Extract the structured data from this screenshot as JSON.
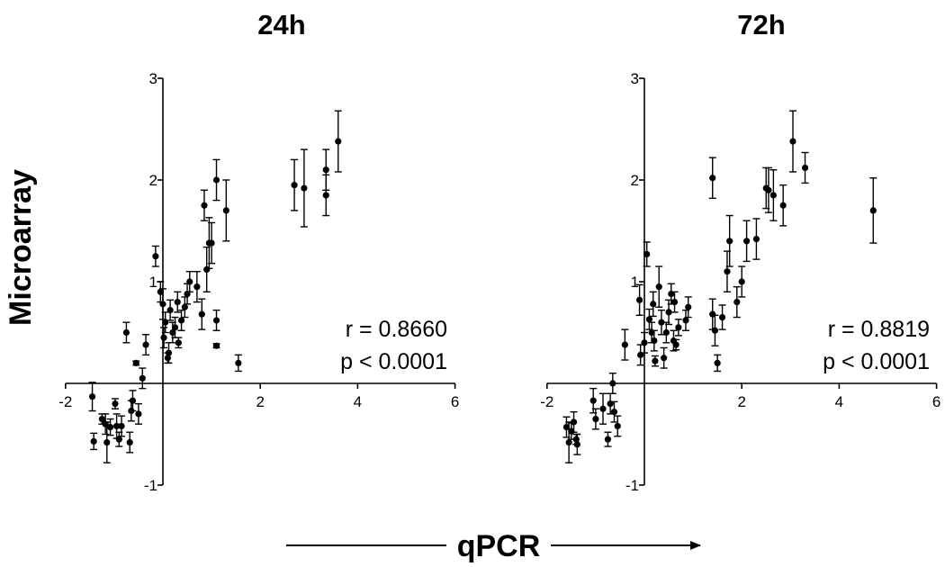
{
  "figure": {
    "ylabel": "Microarray",
    "xlabel": "qPCR"
  },
  "chart_data": [
    {
      "type": "scatter",
      "title": "24h",
      "xlabel": "",
      "ylabel": "",
      "xlim": [
        -2,
        6
      ],
      "ylim": [
        -1,
        3
      ],
      "xticks": [
        -2,
        2,
        4,
        6
      ],
      "yticks": [
        -1,
        1,
        2,
        3
      ],
      "error_bars": true,
      "annotations": [
        "r = 0.8660",
        "p < 0.0001"
      ],
      "points": [
        {
          "x": -1.45,
          "y": -0.13,
          "err": 0.14
        },
        {
          "x": -1.42,
          "y": -0.57,
          "err": 0.08
        },
        {
          "x": -1.25,
          "y": -0.35,
          "err": 0.05
        },
        {
          "x": -1.18,
          "y": -0.4,
          "err": 0.1
        },
        {
          "x": -1.15,
          "y": -0.58,
          "err": 0.2
        },
        {
          "x": -1.08,
          "y": -0.43,
          "err": 0.08
        },
        {
          "x": -0.98,
          "y": -0.2,
          "err": 0.05
        },
        {
          "x": -0.95,
          "y": -0.42,
          "err": 0.12
        },
        {
          "x": -0.9,
          "y": -0.55,
          "err": 0.07
        },
        {
          "x": -0.85,
          "y": -0.42,
          "err": 0.1
        },
        {
          "x": -0.68,
          "y": -0.58,
          "err": 0.1
        },
        {
          "x": -0.65,
          "y": -0.27,
          "err": 0.1
        },
        {
          "x": -0.62,
          "y": -0.17,
          "err": 0.1
        },
        {
          "x": -0.5,
          "y": -0.3,
          "err": 0.1
        },
        {
          "x": -0.42,
          "y": 0.05,
          "err": 0.1
        },
        {
          "x": -0.75,
          "y": 0.5,
          "err": 0.1
        },
        {
          "x": -0.55,
          "y": 0.2,
          "err": 0.02
        },
        {
          "x": -0.35,
          "y": 0.38,
          "err": 0.1
        },
        {
          "x": -0.15,
          "y": 1.25,
          "err": 0.1
        },
        {
          "x": -0.05,
          "y": 0.9,
          "err": 0.1
        },
        {
          "x": 0.0,
          "y": 0.78,
          "err": 0.15
        },
        {
          "x": 0.02,
          "y": 0.45,
          "err": 0.1
        },
        {
          "x": 0.05,
          "y": 0.6,
          "err": 0.1
        },
        {
          "x": 0.1,
          "y": 0.25,
          "err": 0.05
        },
        {
          "x": 0.12,
          "y": 0.3,
          "err": 0.1
        },
        {
          "x": 0.15,
          "y": 0.72,
          "err": 0.1
        },
        {
          "x": 0.2,
          "y": 0.5,
          "err": 0.1
        },
        {
          "x": 0.25,
          "y": 0.55,
          "err": 0.1
        },
        {
          "x": 0.3,
          "y": 0.8,
          "err": 0.1
        },
        {
          "x": 0.32,
          "y": 0.4,
          "err": 0.05
        },
        {
          "x": 0.38,
          "y": 0.62,
          "err": 0.1
        },
        {
          "x": 0.45,
          "y": 0.75,
          "err": 0.1
        },
        {
          "x": 0.5,
          "y": 0.88,
          "err": 0.1
        },
        {
          "x": 0.55,
          "y": 1.0,
          "err": 0.1
        },
        {
          "x": 0.7,
          "y": 0.95,
          "err": 0.15
        },
        {
          "x": 0.8,
          "y": 0.68,
          "err": 0.15
        },
        {
          "x": 0.85,
          "y": 1.75,
          "err": 0.15
        },
        {
          "x": 0.9,
          "y": 1.12,
          "err": 0.22
        },
        {
          "x": 0.95,
          "y": 1.38,
          "err": 0.25
        },
        {
          "x": 1.0,
          "y": 1.38,
          "err": 0.2
        },
        {
          "x": 1.1,
          "y": 2.0,
          "err": 0.2
        },
        {
          "x": 1.1,
          "y": 0.62,
          "err": 0.1
        },
        {
          "x": 1.1,
          "y": 0.37,
          "err": 0.02
        },
        {
          "x": 1.3,
          "y": 1.7,
          "err": 0.3
        },
        {
          "x": 1.55,
          "y": 0.2,
          "err": 0.08
        },
        {
          "x": 2.7,
          "y": 1.95,
          "err": 0.25
        },
        {
          "x": 2.9,
          "y": 1.92,
          "err": 0.38
        },
        {
          "x": 3.35,
          "y": 2.1,
          "err": 0.2
        },
        {
          "x": 3.35,
          "y": 1.85,
          "err": 0.2
        },
        {
          "x": 3.6,
          "y": 2.38,
          "err": 0.3
        }
      ]
    },
    {
      "type": "scatter",
      "title": "72h",
      "xlabel": "",
      "ylabel": "",
      "xlim": [
        -2,
        6
      ],
      "ylim": [
        -1,
        3
      ],
      "xticks": [
        -2,
        2,
        4,
        6
      ],
      "yticks": [
        -1,
        1,
        2,
        3
      ],
      "error_bars": true,
      "annotations": [
        "r = 0.8819",
        "p < 0.0001"
      ],
      "points": [
        {
          "x": -1.6,
          "y": -0.43,
          "err": 0.1
        },
        {
          "x": -1.55,
          "y": -0.58,
          "err": 0.2
        },
        {
          "x": -1.5,
          "y": -0.47,
          "err": 0.08
        },
        {
          "x": -1.45,
          "y": -0.38,
          "err": 0.1
        },
        {
          "x": -1.4,
          "y": -0.55,
          "err": 0.05
        },
        {
          "x": -1.38,
          "y": -0.6,
          "err": 0.1
        },
        {
          "x": -1.05,
          "y": -0.17,
          "err": 0.12
        },
        {
          "x": -1.0,
          "y": -0.35,
          "err": 0.1
        },
        {
          "x": -0.85,
          "y": -0.25,
          "err": 0.15
        },
        {
          "x": -0.75,
          "y": -0.55,
          "err": 0.07
        },
        {
          "x": -0.7,
          "y": -0.2,
          "err": 0.1
        },
        {
          "x": -0.65,
          "y": 0.0,
          "err": 0.1
        },
        {
          "x": -0.62,
          "y": -0.28,
          "err": 0.1
        },
        {
          "x": -0.55,
          "y": -0.42,
          "err": 0.1
        },
        {
          "x": -0.4,
          "y": 0.38,
          "err": 0.15
        },
        {
          "x": -0.1,
          "y": 0.82,
          "err": 0.15
        },
        {
          "x": -0.08,
          "y": 0.28,
          "err": 0.1
        },
        {
          "x": 0.0,
          "y": 0.4,
          "err": 0.1
        },
        {
          "x": 0.05,
          "y": 1.27,
          "err": 0.12
        },
        {
          "x": 0.1,
          "y": 0.63,
          "err": 0.1
        },
        {
          "x": 0.15,
          "y": 0.5,
          "err": 0.1
        },
        {
          "x": 0.18,
          "y": 0.78,
          "err": 0.12
        },
        {
          "x": 0.2,
          "y": 0.42,
          "err": 0.1
        },
        {
          "x": 0.22,
          "y": 0.22,
          "err": 0.05
        },
        {
          "x": 0.3,
          "y": 0.95,
          "err": 0.2
        },
        {
          "x": 0.35,
          "y": 0.6,
          "err": 0.12
        },
        {
          "x": 0.4,
          "y": 0.25,
          "err": 0.1
        },
        {
          "x": 0.45,
          "y": 0.5,
          "err": 0.1
        },
        {
          "x": 0.5,
          "y": 0.7,
          "err": 0.12
        },
        {
          "x": 0.55,
          "y": 0.88,
          "err": 0.1
        },
        {
          "x": 0.6,
          "y": 0.42,
          "err": 0.1
        },
        {
          "x": 0.62,
          "y": 0.8,
          "err": 0.1
        },
        {
          "x": 0.65,
          "y": 0.38,
          "err": 0.05
        },
        {
          "x": 0.7,
          "y": 0.55,
          "err": 0.08
        },
        {
          "x": 0.85,
          "y": 0.62,
          "err": 0.1
        },
        {
          "x": 0.9,
          "y": 0.75,
          "err": 0.1
        },
        {
          "x": 1.4,
          "y": 2.02,
          "err": 0.2
        },
        {
          "x": 1.45,
          "y": 0.52,
          "err": 0.15
        },
        {
          "x": 1.4,
          "y": 0.68,
          "err": 0.15
        },
        {
          "x": 1.5,
          "y": 0.2,
          "err": 0.08
        },
        {
          "x": 1.6,
          "y": 0.65,
          "err": 0.12
        },
        {
          "x": 1.7,
          "y": 1.1,
          "err": 0.2
        },
        {
          "x": 1.75,
          "y": 1.4,
          "err": 0.25
        },
        {
          "x": 1.9,
          "y": 0.8,
          "err": 0.15
        },
        {
          "x": 2.0,
          "y": 1.0,
          "err": 0.15
        },
        {
          "x": 2.1,
          "y": 1.4,
          "err": 0.2
        },
        {
          "x": 2.3,
          "y": 1.42,
          "err": 0.2
        },
        {
          "x": 2.5,
          "y": 1.92,
          "err": 0.2
        },
        {
          "x": 2.55,
          "y": 1.9,
          "err": 0.22
        },
        {
          "x": 2.65,
          "y": 1.85,
          "err": 0.25
        },
        {
          "x": 2.85,
          "y": 1.75,
          "err": 0.2
        },
        {
          "x": 3.05,
          "y": 2.38,
          "err": 0.3
        },
        {
          "x": 3.3,
          "y": 2.12,
          "err": 0.15
        },
        {
          "x": 4.7,
          "y": 1.7,
          "err": 0.32
        }
      ]
    }
  ]
}
